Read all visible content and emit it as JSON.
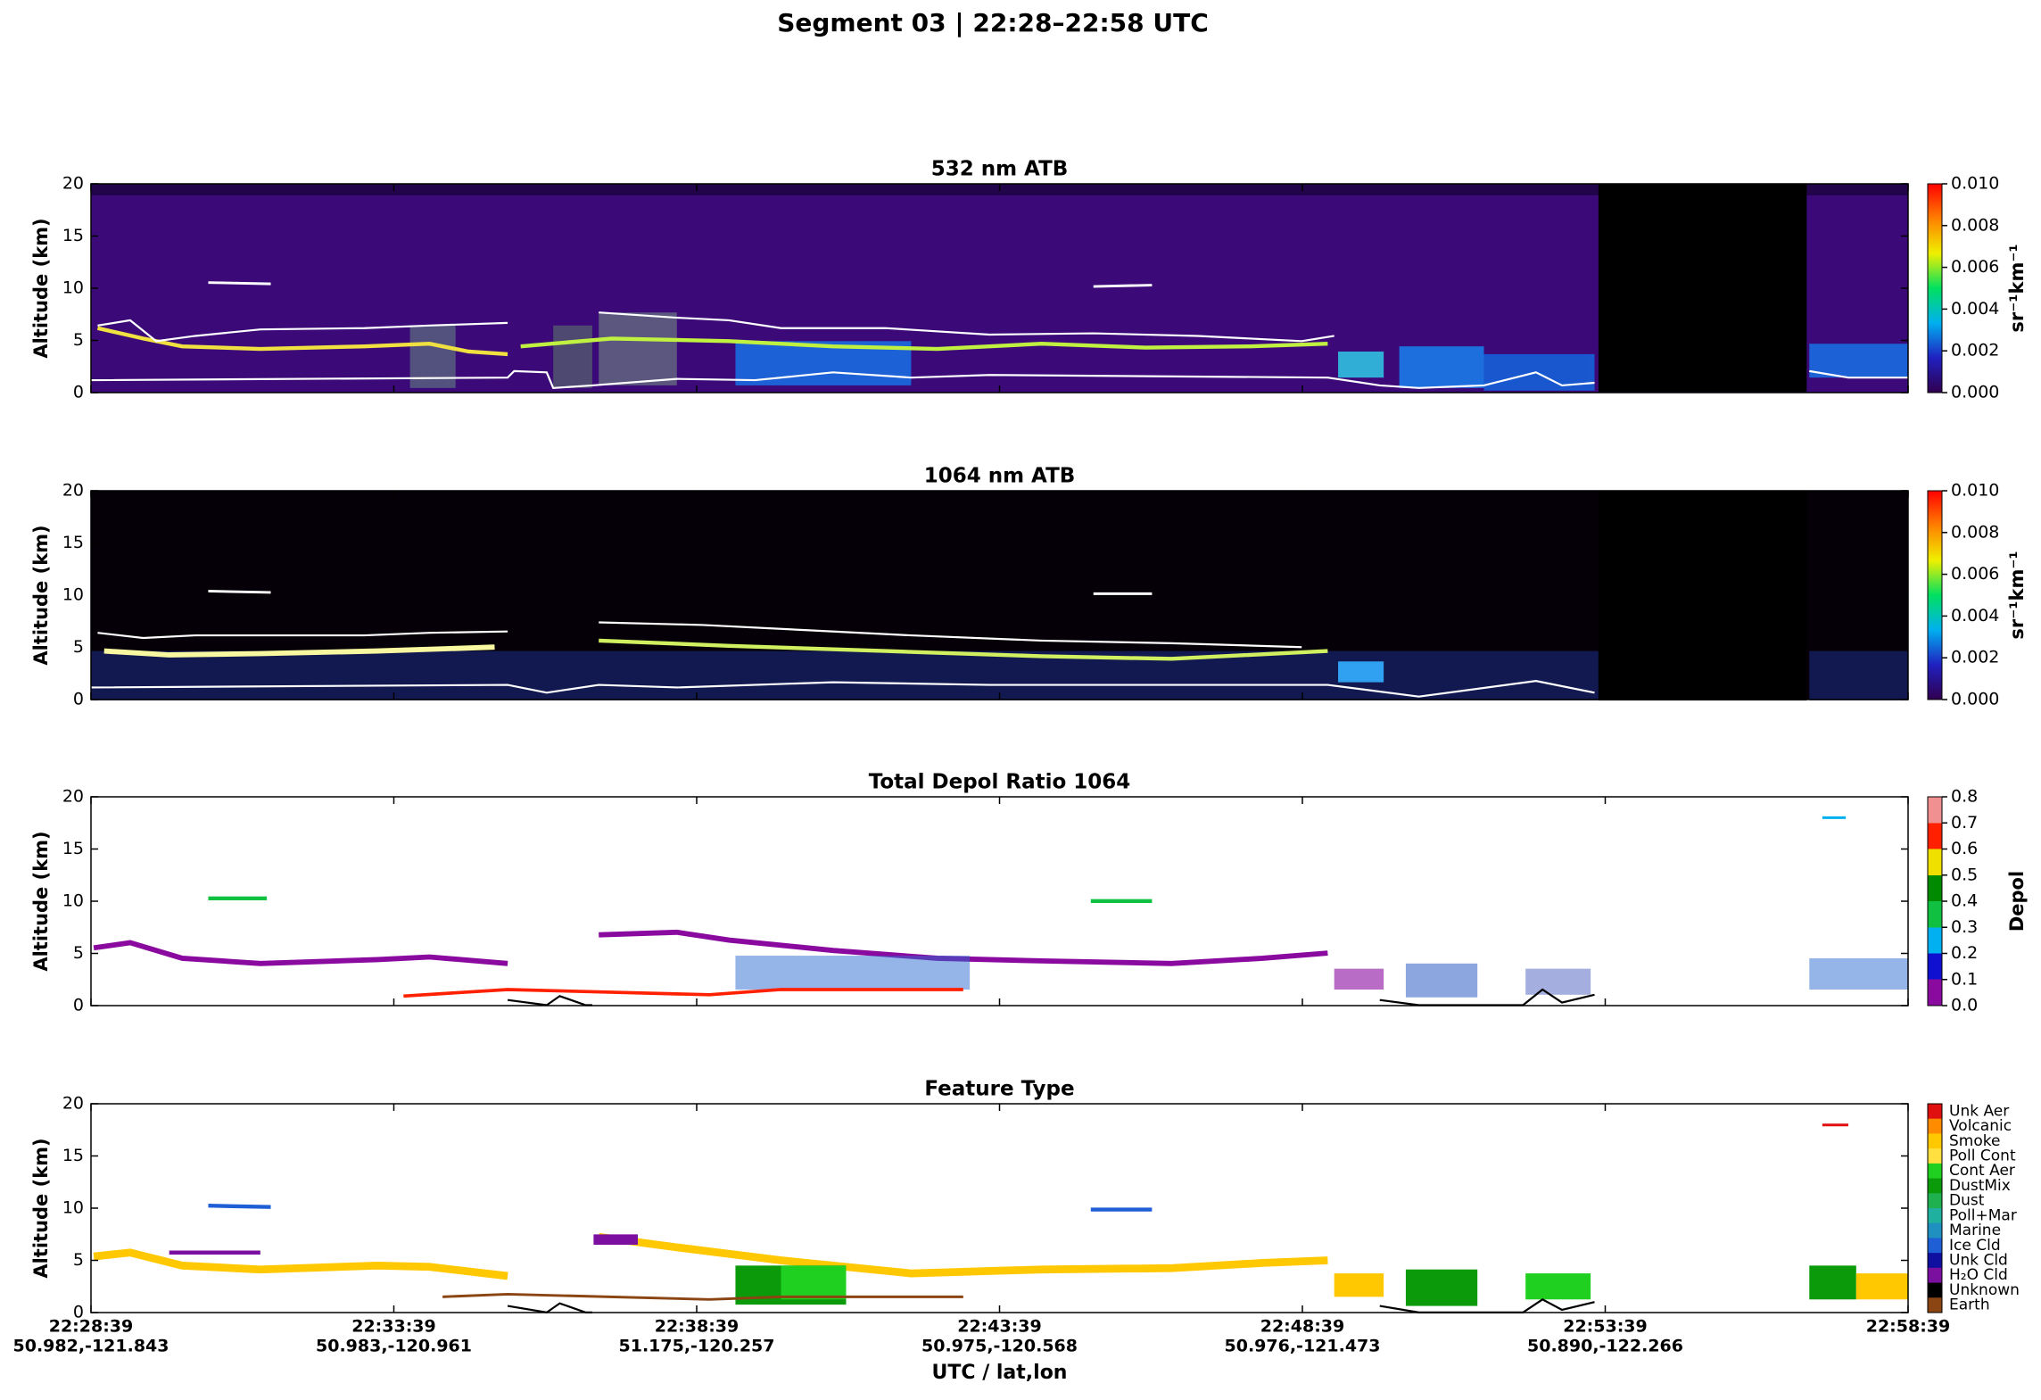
{
  "title": "Segment 03  |  22:28–22:58 UTC",
  "chart_data": [
    {
      "type": "heatmap",
      "title": "532 nm ATB",
      "y_label": "Altitude (km)",
      "ylim": [
        0,
        20
      ],
      "yticks": [
        0,
        5,
        10,
        15,
        20
      ],
      "background": "#3c0a78",
      "colorbar": {
        "label": "sr⁻¹km⁻¹",
        "lim": [
          0,
          0.01
        ],
        "ticks": [
          {
            "value": 0,
            "label": "0.000"
          },
          {
            "value": 0.002,
            "label": "0.002"
          },
          {
            "value": 0.004,
            "label": "0.004"
          },
          {
            "value": 0.006,
            "label": "0.006"
          },
          {
            "value": 0.008,
            "label": "0.008"
          },
          {
            "value": 0.01,
            "label": "0.010"
          }
        ],
        "colors": [
          "#30004f",
          "#2020c0",
          "#00b0f0",
          "#00e060",
          "#f0f000",
          "#ff8000",
          "#ff0000"
        ]
      }
    },
    {
      "type": "heatmap",
      "title": "1064 nm ATB",
      "y_label": "Altitude (km)",
      "ylim": [
        0,
        20
      ],
      "yticks": [
        0,
        5,
        10,
        15,
        20
      ],
      "background": "#050008",
      "colorbar": {
        "label": "sr⁻¹km⁻¹",
        "lim": [
          0,
          0.01
        ],
        "ticks": [
          {
            "value": 0,
            "label": "0.000"
          },
          {
            "value": 0.002,
            "label": "0.002"
          },
          {
            "value": 0.004,
            "label": "0.004"
          },
          {
            "value": 0.006,
            "label": "0.006"
          },
          {
            "value": 0.008,
            "label": "0.008"
          },
          {
            "value": 0.01,
            "label": "0.010"
          }
        ],
        "colors": [
          "#30004f",
          "#2020c0",
          "#00b0f0",
          "#00e060",
          "#f0f000",
          "#ff8000",
          "#ff0000"
        ]
      }
    },
    {
      "type": "heatmap",
      "title": "Total Depol Ratio 1064",
      "y_label": "Altitude (km)",
      "ylim": [
        0,
        20
      ],
      "yticks": [
        0,
        5,
        10,
        15,
        20
      ],
      "background": "#ffffff",
      "colorbar": {
        "label": "Depol",
        "lim": [
          0,
          0.8
        ],
        "ticks": [
          {
            "value": 0,
            "label": "0.0"
          },
          {
            "value": 0.1,
            "label": "0.1"
          },
          {
            "value": 0.2,
            "label": "0.2"
          },
          {
            "value": 0.3,
            "label": "0.3"
          },
          {
            "value": 0.4,
            "label": "0.4"
          },
          {
            "value": 0.5,
            "label": "0.5"
          },
          {
            "value": 0.6,
            "label": "0.6"
          },
          {
            "value": 0.7,
            "label": "0.7"
          },
          {
            "value": 0.8,
            "label": "0.8"
          }
        ],
        "colors": [
          "#8a0aa0",
          "#1010d0",
          "#00b0f0",
          "#10c040",
          "#008a00",
          "#f0e000",
          "#ff2000",
          "#f09090"
        ]
      }
    },
    {
      "type": "heatmap",
      "title": "Feature Type",
      "y_label": "Altitude (km)",
      "ylim": [
        0,
        20
      ],
      "yticks": [
        0,
        5,
        10,
        15,
        20
      ],
      "background": "#ffffff",
      "colorbar": {
        "categories": [
          "Unk Aer",
          "Volcanic",
          "Smoke",
          "Poll Cont",
          "Cont Aer",
          "DustMix",
          "Dust",
          "Poll+Mar",
          "Marine",
          "Ice Cld",
          "Unk Cld",
          "H₂O Cld",
          "Unknown",
          "Earth"
        ],
        "colors": [
          "#e01010",
          "#ff8c00",
          "#ffc800",
          "#ffe040",
          "#20d020",
          "#0a9a0a",
          "#1fb050",
          "#20b0a0",
          "#2090c0",
          "#1f5fd6",
          "#1010a0",
          "#7b0fa0",
          "#000000",
          "#8b4513"
        ]
      },
      "x_label": "UTC / lat,lon",
      "xlim": [
        0,
        30
      ],
      "xticks": [
        {
          "value": 0,
          "label": "22:28:39"
        },
        {
          "value": 5,
          "label": "22:33:39"
        },
        {
          "value": 10,
          "label": "22:38:39"
        },
        {
          "value": 15,
          "label": "22:43:39"
        },
        {
          "value": 20,
          "label": "22:48:39"
        },
        {
          "value": 25,
          "label": "22:53:39"
        },
        {
          "value": 30,
          "label": "22:58:39"
        }
      ],
      "xtick_locations": [
        "50.982,-121.843",
        "50.983,-120.961",
        "51.175,-120.257",
        "50.975,-120.568",
        "50.976,-121.473",
        "50.890,-122.266",
        null
      ]
    }
  ]
}
